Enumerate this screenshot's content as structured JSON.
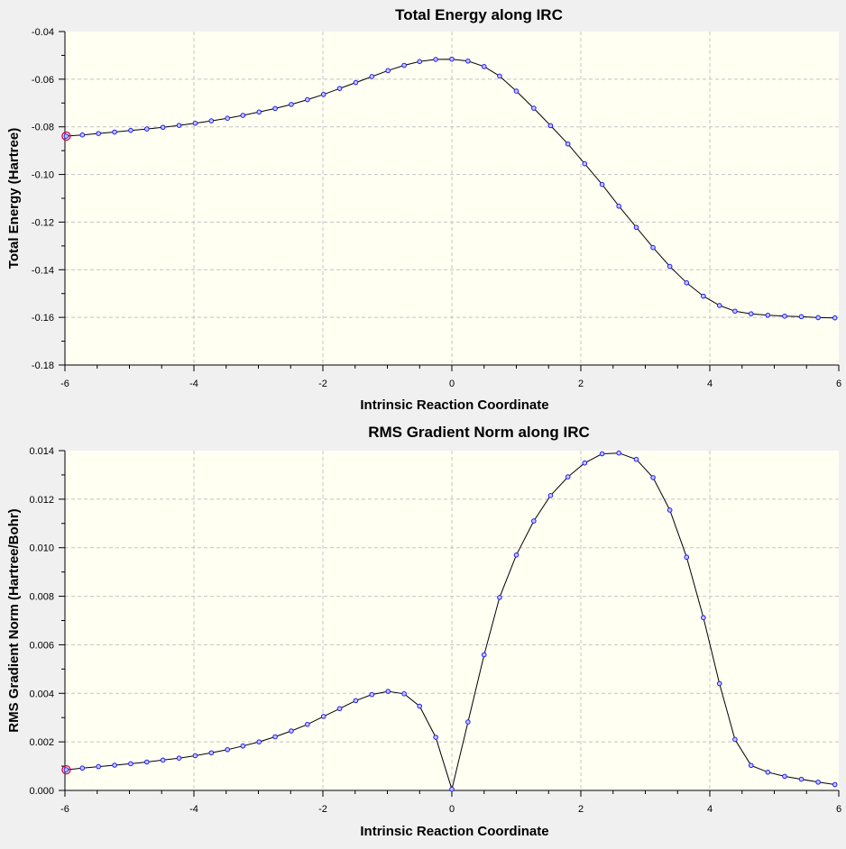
{
  "colors": {
    "background": "#f0f0f0",
    "plot_background": "#fffff2",
    "line": "#000000",
    "marker_fill": "#c8c8ff",
    "marker_stroke": "#1a1aff",
    "highlight": "#d0003a",
    "grid": "#c4c4c4"
  },
  "chart_data": [
    {
      "type": "line",
      "title": "Total Energy along IRC",
      "xlabel": "Intrinsic Reaction Coordinate",
      "ylabel": "Total Energy (Hartree)",
      "xlim": [
        -6,
        6
      ],
      "ylim": [
        -0.18,
        -0.04
      ],
      "xticks": [
        -6,
        -4,
        -2,
        0,
        2,
        4,
        6
      ],
      "xtick_labels": [
        "-6",
        "-4",
        "-2",
        "0",
        "2",
        "4",
        "6"
      ],
      "yticks": [
        -0.04,
        -0.06,
        -0.08,
        -0.1,
        -0.12,
        -0.14,
        -0.16,
        -0.18
      ],
      "ytick_labels": [
        "-0.04",
        "-0.06",
        "-0.08",
        "-0.10",
        "-0.12",
        "-0.14",
        "-0.16",
        "-0.18"
      ],
      "grid": true,
      "highlighted_point_index": 0,
      "x": [
        -5.98,
        -5.73,
        -5.48,
        -5.23,
        -4.98,
        -4.73,
        -4.48,
        -4.23,
        -3.98,
        -3.73,
        -3.48,
        -3.24,
        -2.99,
        -2.74,
        -2.49,
        -2.24,
        -1.99,
        -1.74,
        -1.49,
        -1.24,
        -0.99,
        -0.74,
        -0.5,
        -0.25,
        0.0,
        0.25,
        0.5,
        0.74,
        1.0,
        1.27,
        1.53,
        1.8,
        2.06,
        2.33,
        2.59,
        2.86,
        3.12,
        3.38,
        3.64,
        3.9,
        4.15,
        4.39,
        4.64,
        4.9,
        5.16,
        5.42,
        5.68,
        5.94
      ],
      "y": [
        -0.0839,
        -0.0834,
        -0.0828,
        -0.0822,
        -0.0815,
        -0.0809,
        -0.0802,
        -0.0794,
        -0.0785,
        -0.0775,
        -0.0764,
        -0.0752,
        -0.0738,
        -0.0723,
        -0.0706,
        -0.0686,
        -0.0664,
        -0.0639,
        -0.0614,
        -0.0589,
        -0.0564,
        -0.0542,
        -0.0526,
        -0.0517,
        -0.0516,
        -0.0524,
        -0.0547,
        -0.0587,
        -0.065,
        -0.0722,
        -0.0795,
        -0.0872,
        -0.0955,
        -0.1042,
        -0.1133,
        -0.1222,
        -0.1307,
        -0.1386,
        -0.1455,
        -0.1511,
        -0.155,
        -0.1574,
        -0.1585,
        -0.1591,
        -0.1595,
        -0.1597,
        -0.1601,
        -0.1602
      ]
    },
    {
      "type": "line",
      "title": "RMS Gradient Norm along IRC",
      "xlabel": "Intrinsic Reaction Coordinate",
      "ylabel": "RMS Gradient Norm (Hartree/Bohr)",
      "xlim": [
        -6,
        6
      ],
      "ylim": [
        0,
        0.014
      ],
      "xticks": [
        -6,
        -4,
        -2,
        0,
        2,
        4,
        6
      ],
      "xtick_labels": [
        "-6",
        "-4",
        "-2",
        "0",
        "2",
        "4",
        "6"
      ],
      "yticks": [
        0.014,
        0.012,
        0.01,
        0.008,
        0.006,
        0.004,
        0.002,
        0.0
      ],
      "ytick_labels": [
        "0.014",
        "0.012",
        "0.010",
        "0.008",
        "0.006",
        "0.004",
        "0.002",
        "0.000"
      ],
      "grid": true,
      "highlighted_point_index": 0,
      "x": [
        -5.98,
        -5.73,
        -5.48,
        -5.23,
        -4.98,
        -4.73,
        -4.48,
        -4.23,
        -3.98,
        -3.73,
        -3.48,
        -3.24,
        -2.99,
        -2.74,
        -2.49,
        -2.24,
        -1.99,
        -1.74,
        -1.49,
        -1.24,
        -0.99,
        -0.74,
        -0.5,
        -0.25,
        0.0,
        0.25,
        0.5,
        0.74,
        1.0,
        1.27,
        1.53,
        1.8,
        2.06,
        2.33,
        2.59,
        2.86,
        3.12,
        3.38,
        3.64,
        3.9,
        4.15,
        4.39,
        4.64,
        4.9,
        5.16,
        5.42,
        5.68,
        5.94
      ],
      "y": [
        0.00085,
        0.00092,
        0.00098,
        0.00104,
        0.0011,
        0.00117,
        0.00125,
        0.00133,
        0.00143,
        0.00155,
        0.00168,
        0.00183,
        0.002,
        0.00221,
        0.00245,
        0.00272,
        0.00305,
        0.00337,
        0.0037,
        0.00395,
        0.00408,
        0.00398,
        0.00347,
        0.00219,
        5e-05,
        0.00282,
        0.00559,
        0.00795,
        0.0097,
        0.0111,
        0.01215,
        0.01292,
        0.01349,
        0.01387,
        0.0139,
        0.01364,
        0.01289,
        0.01155,
        0.00961,
        0.00712,
        0.0044,
        0.0021,
        0.00103,
        0.00075,
        0.00058,
        0.00046,
        0.00034,
        0.00024
      ]
    }
  ]
}
